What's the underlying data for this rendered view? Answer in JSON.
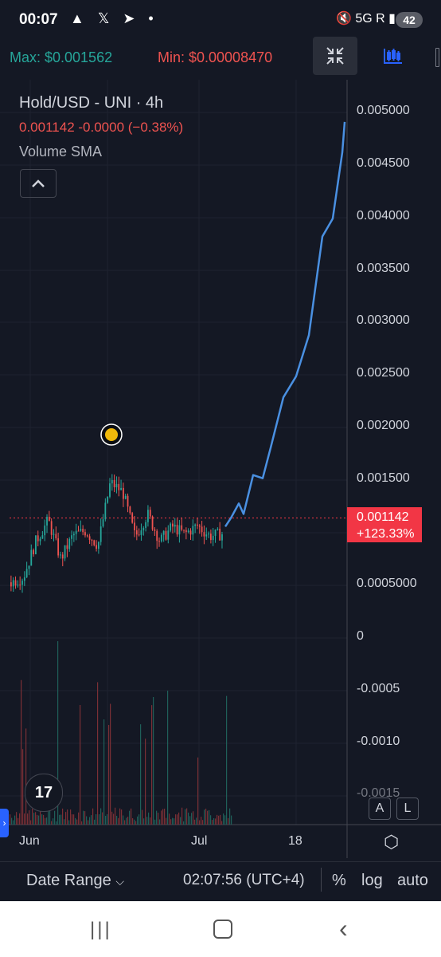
{
  "status_bar": {
    "time": "00:07",
    "left_icons": "▲ 𝕏 ➤ •",
    "right_icons": "🔇 5G R ▮",
    "battery": "42"
  },
  "toolbar": {
    "max_label": "Max: $0.001562",
    "min_label": "Min: $0.00008470",
    "collapse_icon": "collapse-arrows-icon",
    "indicators_icon": "candles-icon"
  },
  "legend": {
    "title": "Hold/USD - UNI · 4h",
    "values": "0.001142  -0.0000  (−0.38%)",
    "indicator": "Volume SMA"
  },
  "price_axis": {
    "ticks": [
      "0.005000",
      "0.004500",
      "0.004000",
      "0.003500",
      "0.003000",
      "0.002500",
      "0.002000",
      "0.001500",
      "0.0005000",
      "0",
      "-0.0005",
      "-0.0010",
      "-0.0015"
    ]
  },
  "price_tag": {
    "price": "0.001142",
    "change": "+123.33%"
  },
  "time_axis": {
    "labels": [
      "Jun",
      "Jul",
      "18"
    ]
  },
  "chart_data": {
    "type": "line",
    "title": "Hold/USD - UNI · 4h",
    "ylim": [
      -0.0015,
      0.005
    ],
    "last_price": 0.001142,
    "candles_close_sample": [
      0.00053,
      0.00058,
      0.00092,
      0.00112,
      0.00075,
      0.00098,
      0.00102,
      0.00088,
      0.00148,
      0.00139,
      0.00096,
      0.00118,
      0.00092,
      0.00106,
      0.00099,
      0.00107,
      0.00097,
      0.00099
    ],
    "projection_line": [
      0.00106,
      0.00114,
      0.00128,
      0.00118,
      0.00155,
      0.00152,
      0.00181,
      0.00229,
      0.00249,
      0.00288,
      0.00382,
      0.00399,
      0.00462,
      0.00491
    ]
  },
  "bottom_bar": {
    "date_range": "Date Range",
    "clock": "02:07:56 (UTC+4)",
    "percent": "%",
    "log": "log",
    "auto": "auto"
  },
  "buttons": {
    "a": "A",
    "l": "L",
    "tv_logo": "17"
  },
  "colors": {
    "up": "#26a69a",
    "down": "#ef5350",
    "line": "#4a90e2",
    "price_tag": "#f23645"
  }
}
